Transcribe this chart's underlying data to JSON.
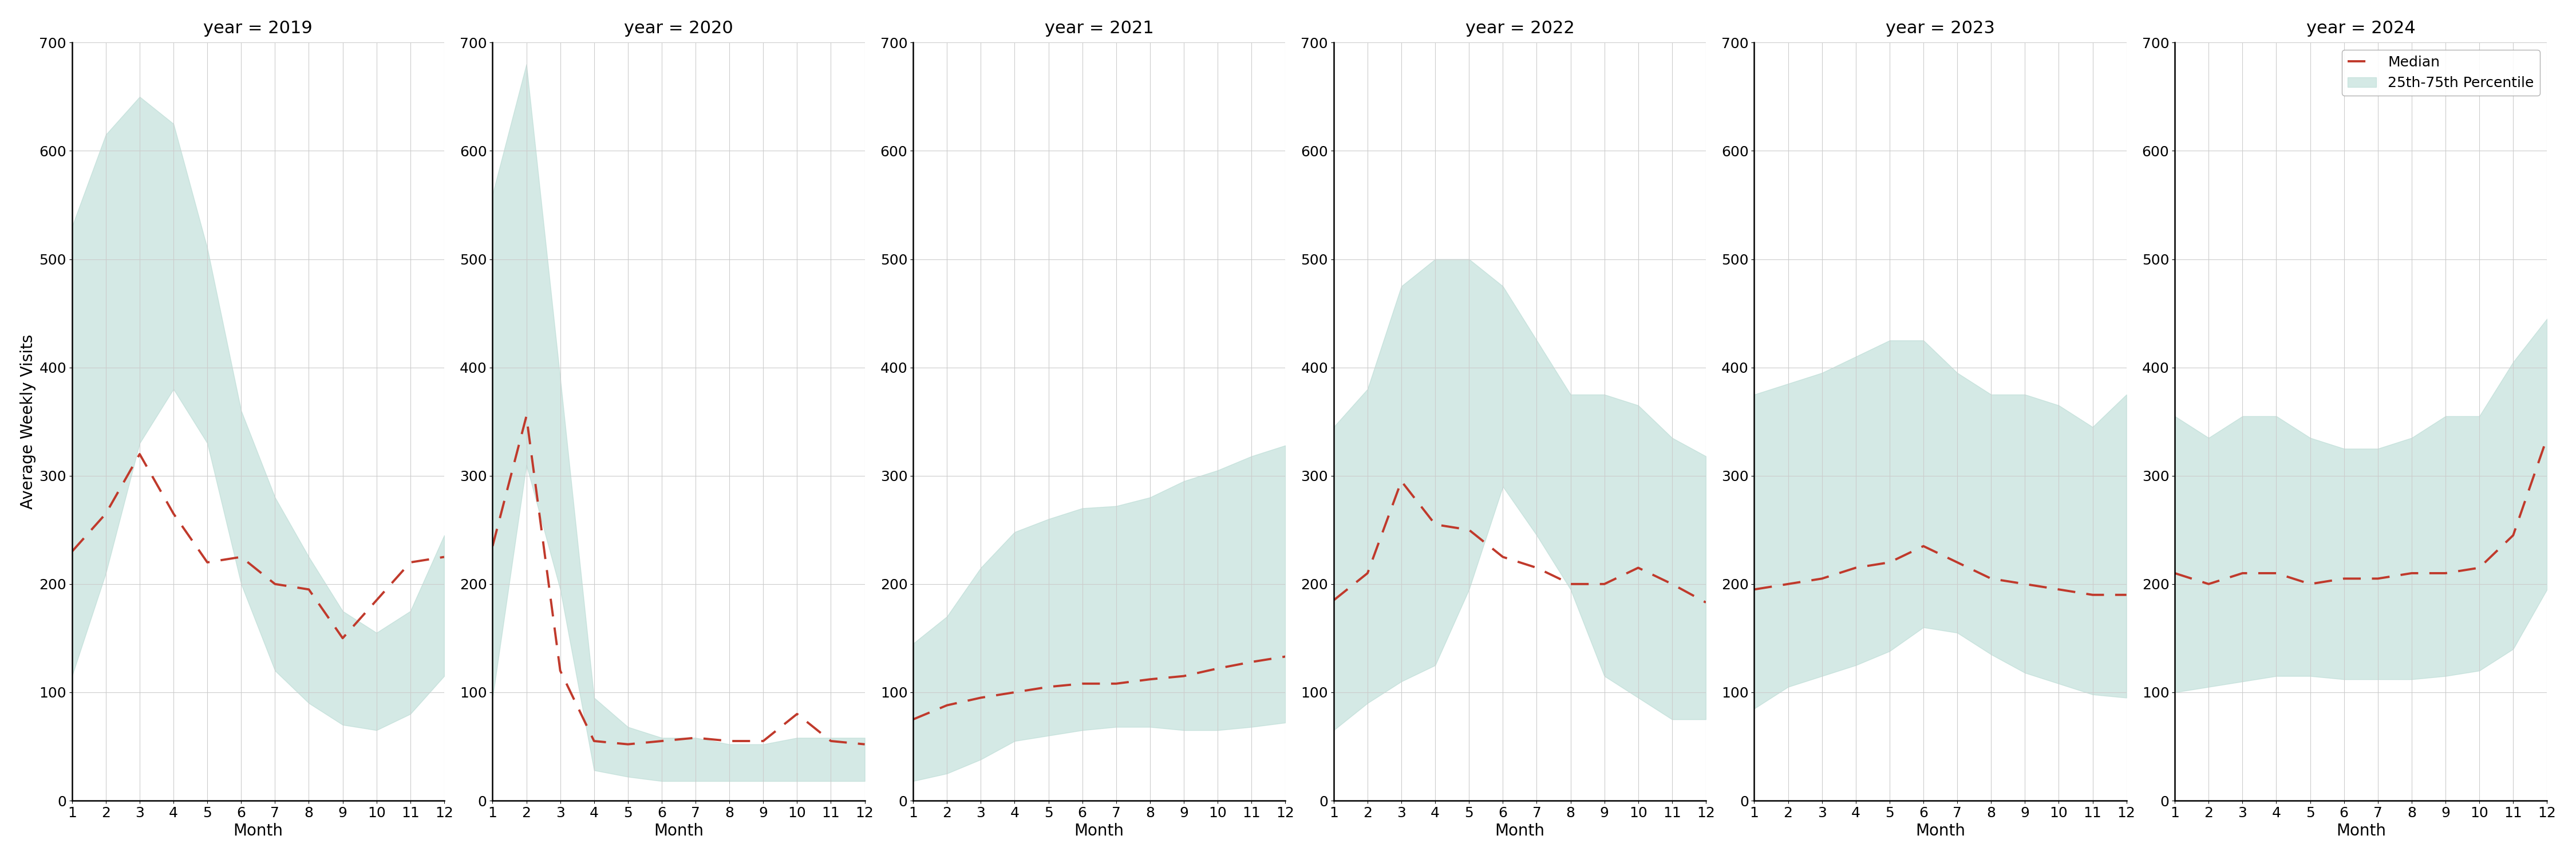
{
  "years": [
    2019,
    2020,
    2021,
    2022,
    2023,
    2024
  ],
  "months": [
    1,
    2,
    3,
    4,
    5,
    6,
    7,
    8,
    9,
    10,
    11,
    12
  ],
  "median": {
    "2019": [
      230,
      265,
      320,
      265,
      220,
      225,
      200,
      195,
      150,
      185,
      220,
      225
    ],
    "2020": [
      235,
      355,
      120,
      55,
      52,
      55,
      58,
      55,
      55,
      80,
      55,
      52
    ],
    "2021": [
      75,
      88,
      95,
      100,
      105,
      108,
      108,
      112,
      115,
      122,
      128,
      133
    ],
    "2022": [
      185,
      210,
      295,
      255,
      250,
      225,
      215,
      200,
      200,
      215,
      200,
      183
    ],
    "2023": [
      195,
      200,
      205,
      215,
      220,
      235,
      220,
      205,
      200,
      195,
      190,
      190
    ],
    "2024": [
      210,
      200,
      210,
      210,
      200,
      205,
      205,
      210,
      210,
      215,
      245,
      335
    ]
  },
  "q25": {
    "2019": [
      115,
      210,
      330,
      380,
      330,
      200,
      120,
      90,
      70,
      65,
      80,
      115
    ],
    "2020": [
      95,
      310,
      195,
      28,
      22,
      18,
      18,
      18,
      18,
      18,
      18,
      18
    ],
    "2021": [
      18,
      25,
      38,
      55,
      60,
      65,
      68,
      68,
      65,
      65,
      68,
      72
    ],
    "2022": [
      65,
      90,
      110,
      125,
      195,
      290,
      245,
      195,
      115,
      95,
      75,
      75
    ],
    "2023": [
      85,
      105,
      115,
      125,
      138,
      160,
      155,
      135,
      118,
      108,
      98,
      95
    ],
    "2024": [
      100,
      105,
      110,
      115,
      115,
      112,
      112,
      112,
      115,
      120,
      140,
      195
    ]
  },
  "q75": {
    "2019": [
      530,
      615,
      650,
      625,
      510,
      360,
      280,
      225,
      175,
      155,
      175,
      245
    ],
    "2020": [
      560,
      680,
      390,
      95,
      68,
      58,
      58,
      52,
      52,
      58,
      58,
      58
    ],
    "2021": [
      145,
      170,
      215,
      248,
      260,
      270,
      272,
      280,
      295,
      305,
      318,
      328
    ],
    "2022": [
      345,
      380,
      475,
      500,
      500,
      475,
      425,
      375,
      375,
      365,
      335,
      318
    ],
    "2023": [
      375,
      385,
      395,
      410,
      425,
      425,
      395,
      375,
      375,
      365,
      345,
      375
    ],
    "2024": [
      355,
      335,
      355,
      355,
      335,
      325,
      325,
      335,
      355,
      355,
      405,
      445
    ]
  },
  "ylim": [
    0,
    700
  ],
  "yticks": [
    0,
    100,
    200,
    300,
    400,
    500,
    600,
    700
  ],
  "fill_color": "#b2d8d0",
  "fill_alpha": 0.55,
  "line_color": "#c0392b",
  "ylabel": "Average Weekly Visits",
  "xlabel": "Month",
  "legend_median_label": "Median",
  "legend_fill_label": "25th-75th Percentile",
  "title_fontsize": 22,
  "axis_fontsize": 20,
  "tick_fontsize": 18,
  "legend_fontsize": 18,
  "background_color": "#ffffff",
  "grid_color": "#cccccc"
}
